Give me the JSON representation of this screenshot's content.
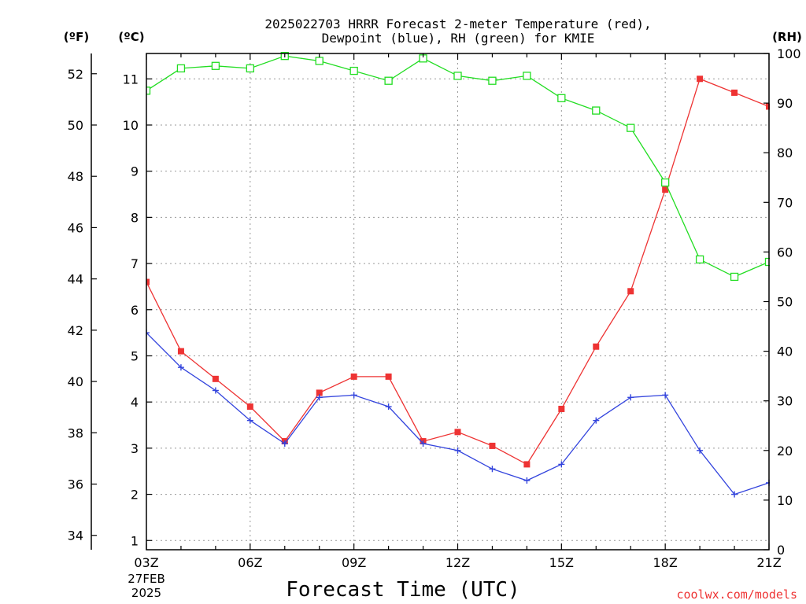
{
  "chart_data": {
    "type": "line",
    "title_line1": "2025022703 HRRR Forecast 2-meter Temperature (red),",
    "title_line2": "Dewpoint (blue), RH (green) for KMIE",
    "xlabel": "Forecast Time (UTC)",
    "credit": "coolwx.com/models",
    "left_axis_f_label": "(ºF)",
    "left_axis_c_label": "(ºC)",
    "right_axis_label": "(RH)",
    "date_label_line1": "27FEB",
    "date_label_line2": "2025",
    "x_ticks": [
      "03Z",
      "06Z",
      "09Z",
      "12Z",
      "15Z",
      "18Z",
      "21Z"
    ],
    "x_hours": [
      3,
      4,
      5,
      6,
      7,
      8,
      9,
      10,
      11,
      12,
      13,
      14,
      15,
      16,
      17,
      18,
      19,
      20,
      21
    ],
    "xlim": [
      3,
      21
    ],
    "y_c_lim": [
      0.8,
      11.55
    ],
    "y_c_ticks": [
      "1",
      "2",
      "3",
      "4",
      "5",
      "6",
      "7",
      "8",
      "9",
      "10",
      "11"
    ],
    "y_f_ticks": [
      "34",
      "36",
      "38",
      "40",
      "42",
      "44",
      "46",
      "48",
      "50",
      "52"
    ],
    "y_rh_lim": [
      0,
      100
    ],
    "y_rh_ticks": [
      "0",
      "10",
      "20",
      "30",
      "40",
      "50",
      "60",
      "70",
      "80",
      "90",
      "100"
    ],
    "grid": true,
    "series": [
      {
        "name": "Temperature",
        "axis": "celsius",
        "color": "#ee3333",
        "marker": "filled-square",
        "values": [
          6.6,
          5.1,
          4.5,
          3.9,
          3.15,
          4.2,
          4.55,
          4.55,
          3.15,
          3.35,
          3.05,
          2.65,
          3.85,
          5.2,
          6.4,
          8.6,
          11.0,
          10.7,
          10.4
        ]
      },
      {
        "name": "Dewpoint",
        "axis": "celsius",
        "color": "#3344dd",
        "marker": "plus",
        "values": [
          5.5,
          4.75,
          4.25,
          3.6,
          3.1,
          4.1,
          4.15,
          3.9,
          3.1,
          2.95,
          2.55,
          2.3,
          2.65,
          3.6,
          4.1,
          4.15,
          2.95,
          2.0,
          2.25
        ]
      },
      {
        "name": "RH",
        "axis": "rh",
        "color": "#22dd22",
        "marker": "open-square",
        "values": [
          92.5,
          97,
          97.5,
          97,
          99.5,
          98.5,
          96.5,
          94.5,
          99,
          95.5,
          94.5,
          95.5,
          91,
          88.5,
          85,
          74,
          58.5,
          55,
          58
        ]
      }
    ]
  }
}
